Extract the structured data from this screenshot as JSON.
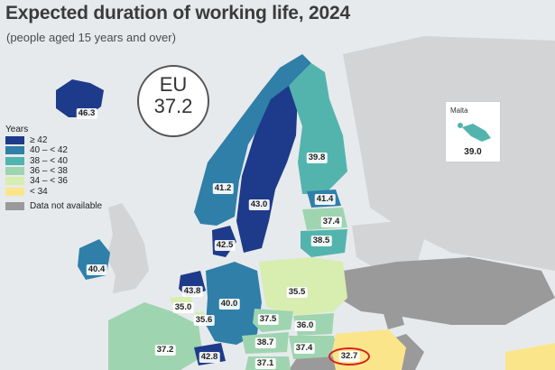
{
  "title": "Expected duration of working life, 2024",
  "subtitle": "(people aged 15 years and over)",
  "eu": {
    "name": "EU",
    "value": "37.2"
  },
  "legend": {
    "title": "Years",
    "items": [
      {
        "label": "≥ 42",
        "color": "#1e3a8a"
      },
      {
        "label": "40 – < 42",
        "color": "#2f7fa8"
      },
      {
        "label": "38 – < 40",
        "color": "#53b4ae"
      },
      {
        "label": "36 – < 38",
        "color": "#9fd4b0"
      },
      {
        "label": "34 – < 36",
        "color": "#d8edb0"
      },
      {
        "label": "< 34",
        "color": "#fbe58b"
      }
    ],
    "na": {
      "label": "Data not available",
      "color": "#9a9a9a"
    }
  },
  "inset": {
    "name": "Malta",
    "value": "39.0"
  },
  "countries": [
    {
      "name": "iceland",
      "value": "46.3"
    },
    {
      "name": "norway",
      "value": "41.2"
    },
    {
      "name": "sweden",
      "value": "43.0"
    },
    {
      "name": "finland",
      "value": "39.8"
    },
    {
      "name": "estonia",
      "value": "41.4"
    },
    {
      "name": "latvia",
      "value": "37.4"
    },
    {
      "name": "lithuania",
      "value": "38.5"
    },
    {
      "name": "denmark",
      "value": "42.5"
    },
    {
      "name": "ireland",
      "value": "40.4"
    },
    {
      "name": "netherlands",
      "value": "43.8"
    },
    {
      "name": "belgium",
      "value": "35.0"
    },
    {
      "name": "luxembourg",
      "value": "35.6"
    },
    {
      "name": "germany",
      "value": "40.0"
    },
    {
      "name": "poland",
      "value": "35.5"
    },
    {
      "name": "czechia",
      "value": "37.5"
    },
    {
      "name": "slovakia",
      "value": "36.0"
    },
    {
      "name": "austria",
      "value": "38.7"
    },
    {
      "name": "hungary",
      "value": "37.4"
    },
    {
      "name": "france",
      "value": "37.2"
    },
    {
      "name": "switzerland",
      "value": "42.8"
    },
    {
      "name": "slovenia",
      "value": "37.1"
    },
    {
      "name": "romania",
      "value": "32.7"
    }
  ]
}
